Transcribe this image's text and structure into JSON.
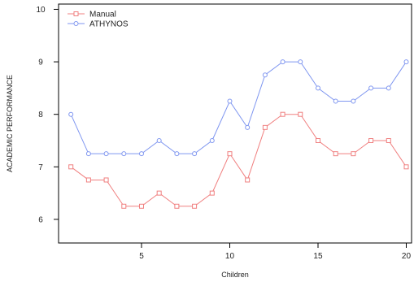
{
  "chart_data": {
    "type": "line",
    "title": "",
    "xlabel": "Children",
    "ylabel": "ACADEMIC PERFORMANCE",
    "x": [
      1,
      2,
      3,
      4,
      5,
      6,
      7,
      8,
      9,
      10,
      11,
      12,
      13,
      14,
      15,
      16,
      17,
      18,
      19,
      20
    ],
    "xlim": [
      0.3,
      20.3
    ],
    "ylim": [
      5.55,
      10.1
    ],
    "xticks": [
      5,
      10,
      15,
      20
    ],
    "yticks": [
      6,
      7,
      8,
      9,
      10
    ],
    "grid": false,
    "legend_position": "top-left",
    "series": [
      {
        "name": "Manual",
        "color": "#f08080",
        "marker": "square",
        "values": [
          7,
          6.75,
          6.75,
          6.25,
          6.25,
          6.5,
          6.25,
          6.25,
          6.5,
          7.25,
          6.75,
          7.75,
          8,
          8,
          7.5,
          7.25,
          7.25,
          7.5,
          7.5,
          7
        ]
      },
      {
        "name": "ATHYNOS",
        "color": "#7f96f0",
        "marker": "circle",
        "values": [
          8,
          7.25,
          7.25,
          7.25,
          7.25,
          7.5,
          7.25,
          7.25,
          7.5,
          8.25,
          7.75,
          8.75,
          9,
          9,
          8.5,
          8.25,
          8.25,
          8.5,
          8.5,
          9
        ]
      }
    ]
  }
}
